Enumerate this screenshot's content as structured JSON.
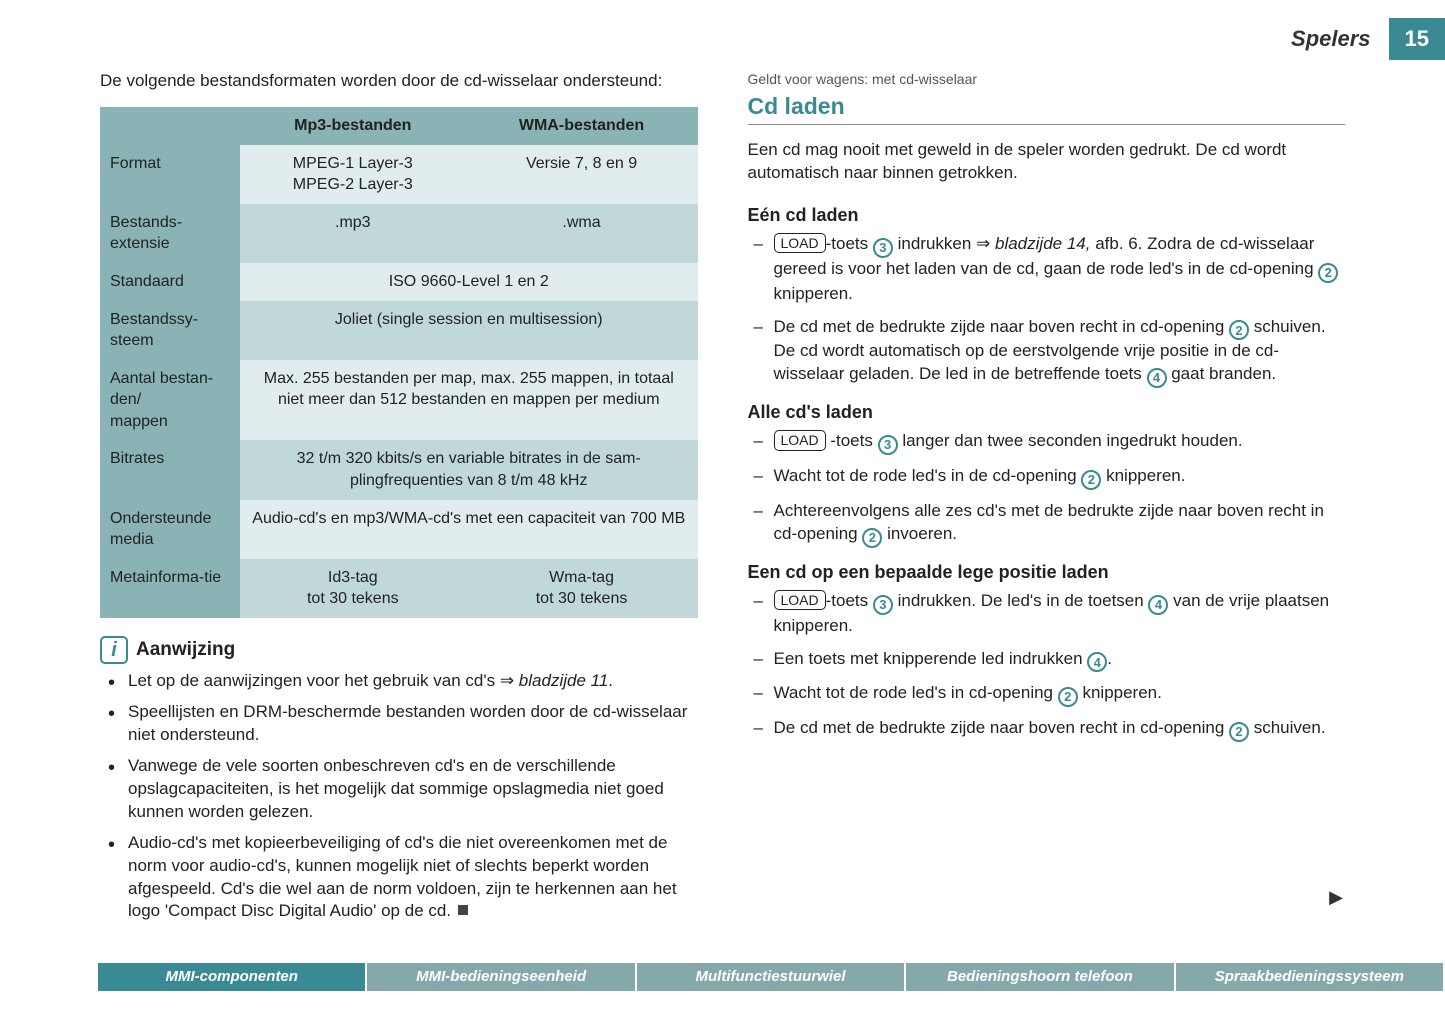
{
  "header": {
    "title": "Spelers",
    "page": "15"
  },
  "leftIntro": "De volgende bestandsformaten worden door de cd-wisselaar ondersteund:",
  "table": {
    "colA": "Mp3-bestanden",
    "colB": "WMA-bestanden",
    "rows": [
      {
        "label": "Format",
        "a": "MPEG-1 Layer-3\nMPEG-2 Layer-3",
        "b": "Versie 7, 8 en 9"
      },
      {
        "label": "Bestands-extensie",
        "a": ".mp3",
        "b": ".wma"
      },
      {
        "label": "Standaard",
        "span": "ISO 9660-Level 1 en 2"
      },
      {
        "label": "Bestandssy-steem",
        "span": "Joliet (single session en multisession)"
      },
      {
        "label": "Aantal bestan-den/\nmappen",
        "span": "Max. 255 bestanden per map, max. 255 mappen, in totaal niet meer dan 512 bestanden en mappen per medium"
      },
      {
        "label": "Bitrates",
        "span": "32 t/m 320 kbits/s en variable bitrates in de sam-plingfrequenties van 8 t/m 48 kHz"
      },
      {
        "label": "Ondersteunde media",
        "span": "Audio-cd's en mp3/WMA-cd's met een capaciteit van 700 MB"
      },
      {
        "label": "Metainforma-tie",
        "a": "Id3-tag\ntot 30 tekens",
        "b": "Wma-tag\ntot 30 tekens"
      }
    ],
    "colors": {
      "header_bg": "#8ab3b6",
      "row_even_bg": "#e0eced",
      "row_odd_bg": "#c0d8d9"
    }
  },
  "note": {
    "title": "Aanwijzing",
    "items": [
      {
        "pre": "Let op de aanwijzingen voor het gebruik van cd's ⇒ ",
        "ref": "bladzijde 11",
        "post": "."
      },
      {
        "text": "Speellijsten en DRM-beschermde bestanden worden door de cd-wisselaar niet ondersteund."
      },
      {
        "text": "Vanwege de vele soorten onbeschreven cd's en de verschillende opslagcapaciteiten, is het mogelijk dat sommige opslagmedia niet goed kunnen worden gelezen."
      },
      {
        "text": "Audio-cd's met kopieerbeveiliging of cd's die niet overeenkomen met de norm voor audio-cd's, kunnen mogelijk niet of slechts beperkt worden afgespeeld. Cd's die wel aan de norm voldoen, zijn te herkennen aan het logo 'Compact Disc Digital Audio' op de cd.",
        "end": true
      }
    ]
  },
  "right": {
    "applies": "Geldt voor wagens: met cd-wisselaar",
    "title": "Cd laden",
    "lead": "Een cd mag nooit met geweld in de speler worden gedrukt. De cd wordt automatisch naar binnen getrokken.",
    "groups": [
      {
        "head": "Eén cd laden",
        "items": [
          {
            "parts": [
              {
                "key": "LOAD"
              },
              {
                "t": "-toets "
              },
              {
                "c": "3"
              },
              {
                "t": " indrukken ⇒ "
              },
              {
                "ref": "bladzijde 14,"
              },
              {
                "t": " afb. 6. Zodra de cd-wisselaar gereed is voor het laden van de cd, gaan de rode led's in de cd-opening "
              },
              {
                "c": "2"
              },
              {
                "t": " knipperen."
              }
            ]
          },
          {
            "parts": [
              {
                "t": "De cd met de bedrukte zijde naar boven recht in cd-opening "
              },
              {
                "c": "2"
              },
              {
                "t": " schuiven. De cd wordt automatisch op de eerstvolgende vrije positie in de cd-wisselaar geladen. De led in de betreffende toets "
              },
              {
                "c": "4"
              },
              {
                "t": " gaat branden."
              }
            ]
          }
        ]
      },
      {
        "head": "Alle cd's laden",
        "items": [
          {
            "parts": [
              {
                "key": "LOAD"
              },
              {
                "t": " -toets "
              },
              {
                "c": "3"
              },
              {
                "t": " langer dan twee seconden ingedrukt houden."
              }
            ]
          },
          {
            "parts": [
              {
                "t": "Wacht tot de rode led's in de cd-opening "
              },
              {
                "c": "2"
              },
              {
                "t": " knipperen."
              }
            ]
          },
          {
            "parts": [
              {
                "t": "Achtereenvolgens alle zes cd's met de bedrukte zijde naar boven recht in cd-opening "
              },
              {
                "c": "2"
              },
              {
                "t": " invoeren."
              }
            ]
          }
        ]
      },
      {
        "head": "Een cd op een bepaalde lege positie laden",
        "items": [
          {
            "parts": [
              {
                "key": "LOAD"
              },
              {
                "t": "-toets "
              },
              {
                "c": "3"
              },
              {
                "t": " indrukken. De led's in de toetsen "
              },
              {
                "c": "4"
              },
              {
                "t": " van de vrije plaatsen knipperen."
              }
            ]
          },
          {
            "parts": [
              {
                "t": "Een toets met knipperende led indrukken "
              },
              {
                "c": "4"
              },
              {
                "t": "."
              }
            ]
          },
          {
            "parts": [
              {
                "t": "Wacht tot de rode led's in cd-opening "
              },
              {
                "c": "2"
              },
              {
                "t": " knipperen."
              }
            ]
          },
          {
            "parts": [
              {
                "t": "De cd met de bedrukte zijde naar boven recht in cd-opening "
              },
              {
                "c": "2"
              },
              {
                "t": " schuiven."
              }
            ]
          }
        ]
      }
    ]
  },
  "footer": {
    "tabs": [
      {
        "label": "MMI-componenten",
        "active": true
      },
      {
        "label": "MMI-bedieningseenheid",
        "active": false
      },
      {
        "label": "Multifunctiestuurwiel",
        "active": false
      },
      {
        "label": "Bedieningshoorn telefoon",
        "active": false
      },
      {
        "label": "Spraakbedieningssysteem",
        "active": false
      }
    ]
  },
  "colors": {
    "accent": "#3a8a93"
  }
}
